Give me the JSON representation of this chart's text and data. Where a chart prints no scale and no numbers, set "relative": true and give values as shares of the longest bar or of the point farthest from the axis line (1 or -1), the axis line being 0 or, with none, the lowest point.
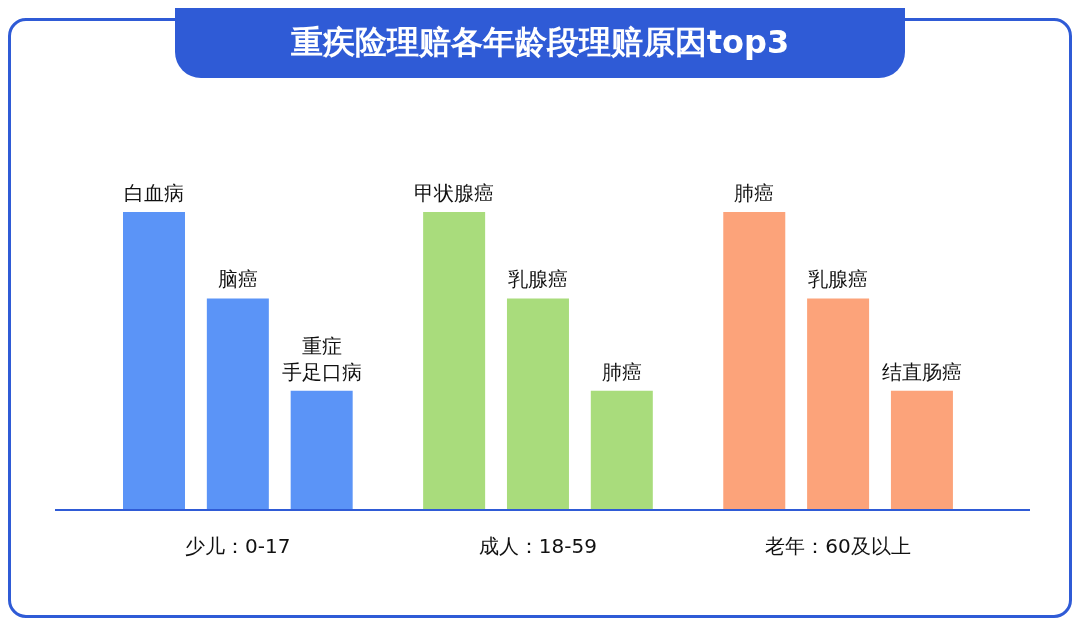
{
  "chart_data": {
    "type": "bar",
    "title": "重疾险理赔各年龄段理赔原因top3",
    "categories": [
      "白血病",
      "脑癌",
      "重症手足口病",
      "甲状腺癌",
      "乳腺癌",
      "肺癌",
      "肺癌",
      "乳腺癌",
      "结直肠癌"
    ],
    "values": [
      1,
      0.71,
      0.4,
      1,
      0.71,
      0.4,
      1,
      0.71,
      0.4
    ],
    "colors": [
      "#5b94f7",
      "#5b94f7",
      "#5b94f7",
      "#a9dc7c",
      "#a9dc7c",
      "#a9dc7c",
      "#fca37a",
      "#fca37a",
      "#fca37a"
    ],
    "relative": true,
    "annotations": [
      "少儿：0-17",
      "成人：18-59",
      "老年：60及以上"
    ]
  }
}
